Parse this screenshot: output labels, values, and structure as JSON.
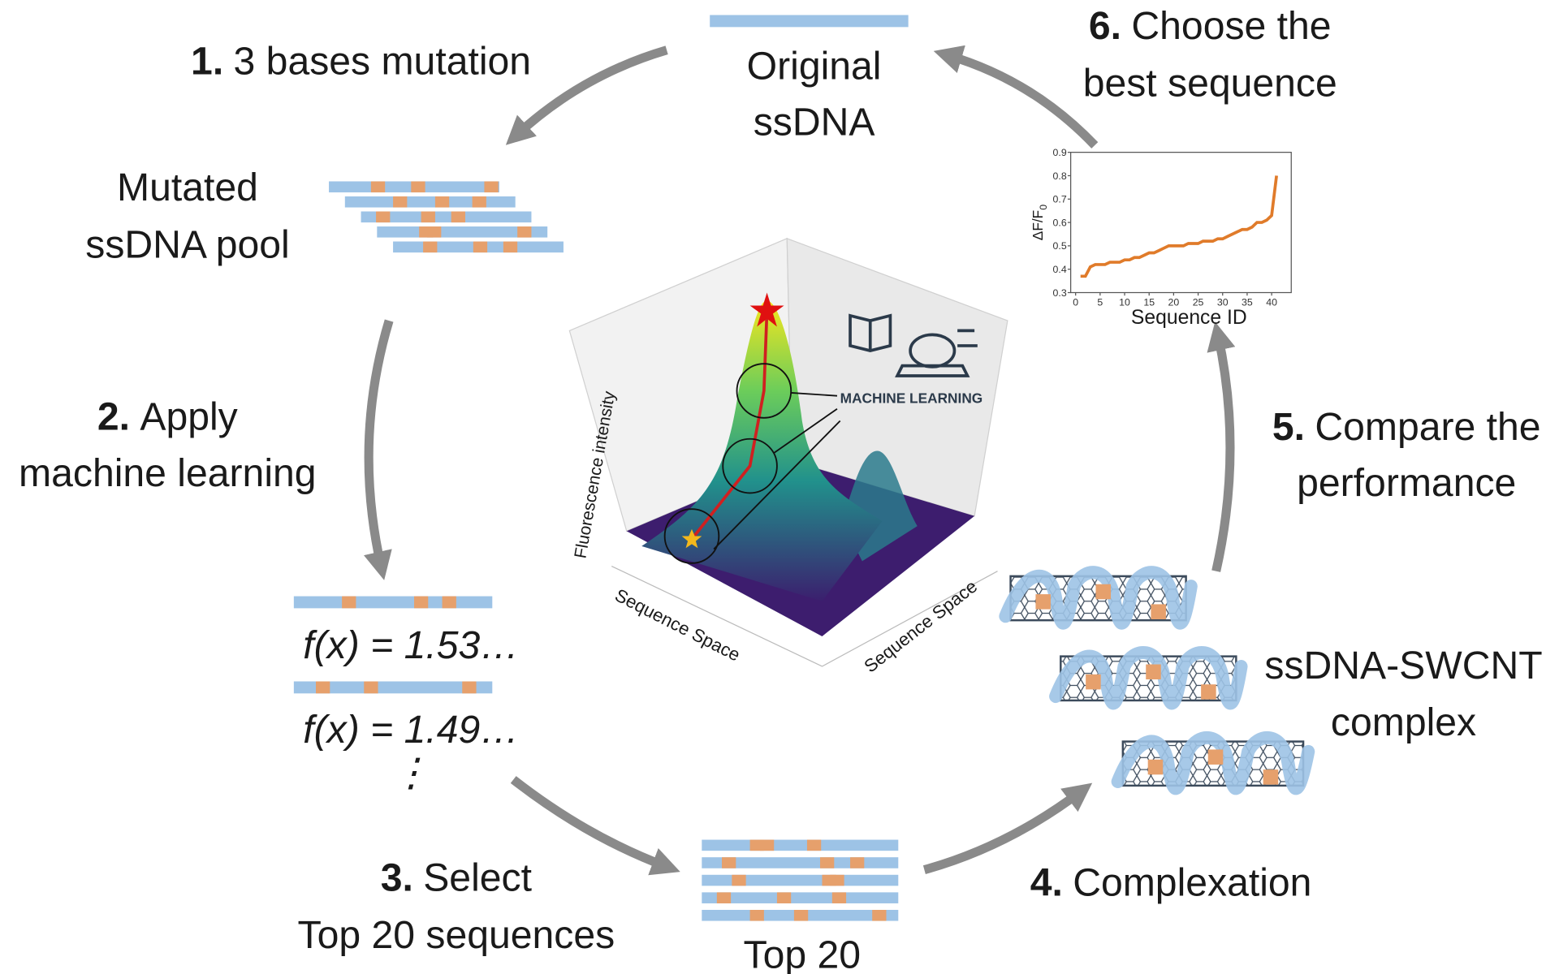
{
  "steps": [
    {
      "number": "1.",
      "lines": [
        "3 bases mutation"
      ]
    },
    {
      "number": "2.",
      "lines": [
        "Apply",
        "machine learning"
      ]
    },
    {
      "number": "3.",
      "lines": [
        "Select",
        "Top 20 sequences"
      ]
    },
    {
      "number": "4.",
      "lines": [
        "Complexation"
      ]
    },
    {
      "number": "5.",
      "lines": [
        "Compare the",
        "performance"
      ]
    },
    {
      "number": "6.",
      "lines": [
        "Choose the",
        "best sequence"
      ]
    }
  ],
  "labels": {
    "original": [
      "Original",
      "ssDNA"
    ],
    "pool": [
      "Mutated",
      "ssDNA pool"
    ],
    "scores": [
      "f(x) = 1.53…",
      "f(x) = 1.49…",
      "⋮"
    ],
    "top20": "Top 20",
    "complex": [
      "ssDNA-SWCNT",
      "complex"
    ]
  },
  "landscape": {
    "z_label": "Fluorescence intensity",
    "x_label": "Sequence Space",
    "y_label": "Sequence Space",
    "badge": "MACHINE LEARNING"
  },
  "chart_data": {
    "type": "line",
    "x_label": "Sequence ID",
    "y_label": "ΔF/F",
    "y_label_sub": "0",
    "x": [
      1,
      2,
      3,
      4,
      5,
      6,
      7,
      8,
      9,
      10,
      11,
      12,
      13,
      14,
      15,
      16,
      17,
      18,
      19,
      20,
      21,
      22,
      23,
      24,
      25,
      26,
      27,
      28,
      29,
      30,
      31,
      32,
      33,
      34,
      35,
      36,
      37,
      38,
      39,
      40,
      41
    ],
    "series": [
      {
        "color": "#e07b2a",
        "values": [
          0.37,
          0.37,
          0.41,
          0.42,
          0.42,
          0.42,
          0.43,
          0.43,
          0.43,
          0.44,
          0.44,
          0.45,
          0.45,
          0.46,
          0.47,
          0.47,
          0.48,
          0.49,
          0.5,
          0.5,
          0.5,
          0.5,
          0.51,
          0.51,
          0.51,
          0.52,
          0.52,
          0.52,
          0.53,
          0.53,
          0.54,
          0.55,
          0.56,
          0.57,
          0.57,
          0.58,
          0.6,
          0.6,
          0.61,
          0.63,
          0.8
        ]
      }
    ],
    "xlim": [
      -1,
      44
    ],
    "ylim": [
      0.3,
      0.9
    ],
    "xticks": [
      0,
      5,
      10,
      15,
      20,
      25,
      30,
      35,
      40
    ],
    "yticks": [
      0.3,
      0.4,
      0.5,
      0.6,
      0.7,
      0.8,
      0.9
    ]
  }
}
